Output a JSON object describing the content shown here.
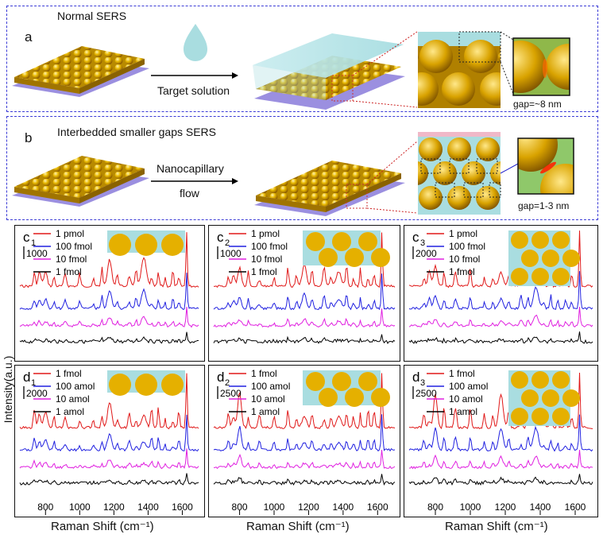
{
  "figure": {
    "panel_a": {
      "letter": "a",
      "title": "Normal SERS",
      "arrow_label": "Target solution",
      "gap_label": "gap=~8  nm"
    },
    "panel_b": {
      "letter": "b",
      "title": "Interbedded smaller  gaps SERS",
      "arrow_label_line1": "Nanocapillary",
      "arrow_label_line2": "flow",
      "gap_label": "gap=1-3  nm"
    },
    "y_axis_label": "Intensity(a.u.)",
    "x_axis_label": "Raman Shift (cm⁻¹)"
  },
  "colors": {
    "red": "#e01818",
    "blue": "#2020e0",
    "magenta": "#e020e0",
    "black": "#000000",
    "gold": "#e0b200",
    "cyan": "#a9dde0",
    "dash": "#3b3bd6",
    "substrate": "#9b8fe0"
  },
  "chart_data": [
    {
      "type": "line",
      "id": "c1",
      "label": "c",
      "sub": "1",
      "scale_bar": "1000",
      "series": [
        {
          "name": "1 pmol",
          "color": "#e01818"
        },
        {
          "name": "100 fmol",
          "color": "#2020e0"
        },
        {
          "name": "10 fmol",
          "color": "#e020e0"
        },
        {
          "name": "1 fmol",
          "color": "#000000"
        }
      ],
      "xlim": [
        650,
        1700
      ],
      "ticks": [],
      "tick_labels": [],
      "inset": "single"
    },
    {
      "type": "line",
      "id": "c2",
      "label": "c",
      "sub": "2",
      "scale_bar": "1000",
      "series": [
        {
          "name": "1 pmol",
          "color": "#e01818"
        },
        {
          "name": "100 fmol",
          "color": "#2020e0"
        },
        {
          "name": "10 fmol",
          "color": "#e020e0"
        },
        {
          "name": "1 fmol",
          "color": "#000000"
        }
      ],
      "xlim": [
        650,
        1700
      ],
      "ticks": [],
      "tick_labels": [],
      "inset": "double"
    },
    {
      "type": "line",
      "id": "c3",
      "label": "c",
      "sub": "3",
      "scale_bar": "2000",
      "series": [
        {
          "name": "1 pmol",
          "color": "#e01818"
        },
        {
          "name": "100 fmol",
          "color": "#2020e0"
        },
        {
          "name": "10 fmol",
          "color": "#e020e0"
        },
        {
          "name": "1 fmol",
          "color": "#000000"
        }
      ],
      "xlim": [
        650,
        1700
      ],
      "ticks": [],
      "tick_labels": [],
      "inset": "triple"
    },
    {
      "type": "line",
      "id": "d1",
      "label": "d",
      "sub": "1",
      "scale_bar": "2000",
      "series": [
        {
          "name": "1 fmol",
          "color": "#e01818"
        },
        {
          "name": "100 amol",
          "color": "#2020e0"
        },
        {
          "name": "10 amol",
          "color": "#e020e0"
        },
        {
          "name": "1 amol",
          "color": "#000000"
        }
      ],
      "xlim": [
        650,
        1700
      ],
      "ticks": [
        800,
        1000,
        1200,
        1400,
        1600
      ],
      "tick_labels": [
        "800",
        "1000",
        "1200",
        "1400",
        "1600"
      ],
      "inset": "single"
    },
    {
      "type": "line",
      "id": "d2",
      "label": "d",
      "sub": "2",
      "scale_bar": "2500",
      "series": [
        {
          "name": "1 fmol",
          "color": "#e01818"
        },
        {
          "name": "100 amol",
          "color": "#2020e0"
        },
        {
          "name": "10 amol",
          "color": "#e020e0"
        },
        {
          "name": "1 amol",
          "color": "#000000"
        }
      ],
      "xlim": [
        650,
        1700
      ],
      "ticks": [
        800,
        1000,
        1200,
        1400,
        1600
      ],
      "tick_labels": [
        "800",
        "1000",
        "1200",
        "1400",
        "1600"
      ],
      "inset": "double"
    },
    {
      "type": "line",
      "id": "d3",
      "label": "d",
      "sub": "3",
      "scale_bar": "2500",
      "series": [
        {
          "name": "1 fmol",
          "color": "#e01818"
        },
        {
          "name": "100 amol",
          "color": "#2020e0"
        },
        {
          "name": "10 amol",
          "color": "#e020e0"
        },
        {
          "name": "1 amol",
          "color": "#000000"
        }
      ],
      "xlim": [
        650,
        1700
      ],
      "ticks": [
        800,
        1000,
        1200,
        1400,
        1600
      ],
      "tick_labels": [
        "800",
        "1000",
        "1200",
        "1400",
        "1600"
      ],
      "inset": "triple"
    }
  ]
}
